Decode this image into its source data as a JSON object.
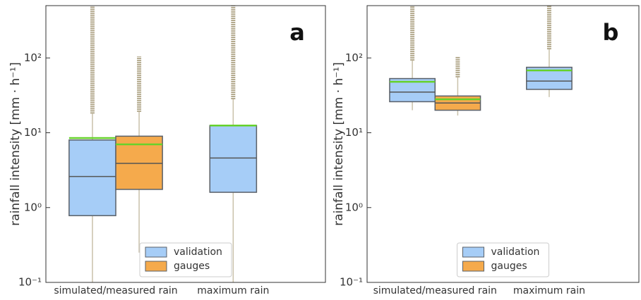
{
  "chart_data": [
    {
      "type": "box",
      "label": "a",
      "ylabel": "rainfall intensity  [mm · h⁻¹]",
      "categories": [
        "simulated/measured rain",
        "maximum rain"
      ],
      "yscale": "log",
      "ylim": [
        0.1,
        500
      ],
      "yticks": [
        {
          "value": 0.1,
          "label": "10⁻¹"
        },
        {
          "value": 1,
          "label": "10⁰"
        },
        {
          "value": 10,
          "label": "10¹"
        },
        {
          "value": 100,
          "label": "10²"
        }
      ],
      "legend": "lower center",
      "mean_color": "#66d22a",
      "median_color": "#555555",
      "whisker_color": "#c9c1aa",
      "outlier_color": "#b3a98d",
      "series": [
        {
          "name": "validation",
          "color": "#a6cdf7",
          "boxes": [
            {
              "whislo": 0.1,
              "q1": 0.78,
              "med": 2.6,
              "q3": 8.0,
              "whishi": 18,
              "mean": 8.5,
              "outliers": [
                18,
                500
              ]
            },
            {
              "whislo": 0.1,
              "q1": 1.6,
              "med": 4.6,
              "q3": 12.5,
              "whishi": 28,
              "mean": 12.5,
              "outliers": [
                28,
                500
              ]
            }
          ]
        },
        {
          "name": "gauges",
          "color": "#f5aa4c",
          "boxes": [
            {
              "whislo": 0.25,
              "q1": 1.75,
              "med": 3.9,
              "q3": 9.0,
              "whishi": 19,
              "mean": 7.0,
              "outliers": [
                19,
                105
              ]
            },
            null
          ]
        }
      ]
    },
    {
      "type": "box",
      "label": "b",
      "ylabel": "rainfall intensity  [mm · h⁻¹]",
      "categories": [
        "simulated/measured rain",
        "maximum rain"
      ],
      "yscale": "log",
      "ylim": [
        0.1,
        500
      ],
      "yticks": [
        {
          "value": 0.1,
          "label": "10⁻¹"
        },
        {
          "value": 1,
          "label": "10⁰"
        },
        {
          "value": 10,
          "label": "10¹"
        },
        {
          "value": 100,
          "label": "10²"
        }
      ],
      "legend": "lower center",
      "mean_color": "#66d22a",
      "median_color": "#555555",
      "whisker_color": "#c9c1aa",
      "outlier_color": "#b3a98d",
      "series": [
        {
          "name": "validation",
          "color": "#a6cdf7",
          "boxes": [
            {
              "whislo": 20,
              "q1": 26,
              "med": 35,
              "q3": 53,
              "whishi": 92,
              "mean": 48,
              "outliers": [
                92,
                500
              ]
            },
            {
              "whislo": 30,
              "q1": 38,
              "med": 49,
              "q3": 75,
              "whishi": 130,
              "mean": 68,
              "outliers": [
                130,
                500
              ]
            }
          ]
        },
        {
          "name": "gauges",
          "color": "#f5aa4c",
          "boxes": [
            {
              "whislo": 17,
              "q1": 20,
              "med": 25,
              "q3": 31,
              "whishi": 55,
              "mean": 28,
              "outliers": [
                55,
                105
              ]
            },
            null
          ]
        }
      ]
    }
  ]
}
